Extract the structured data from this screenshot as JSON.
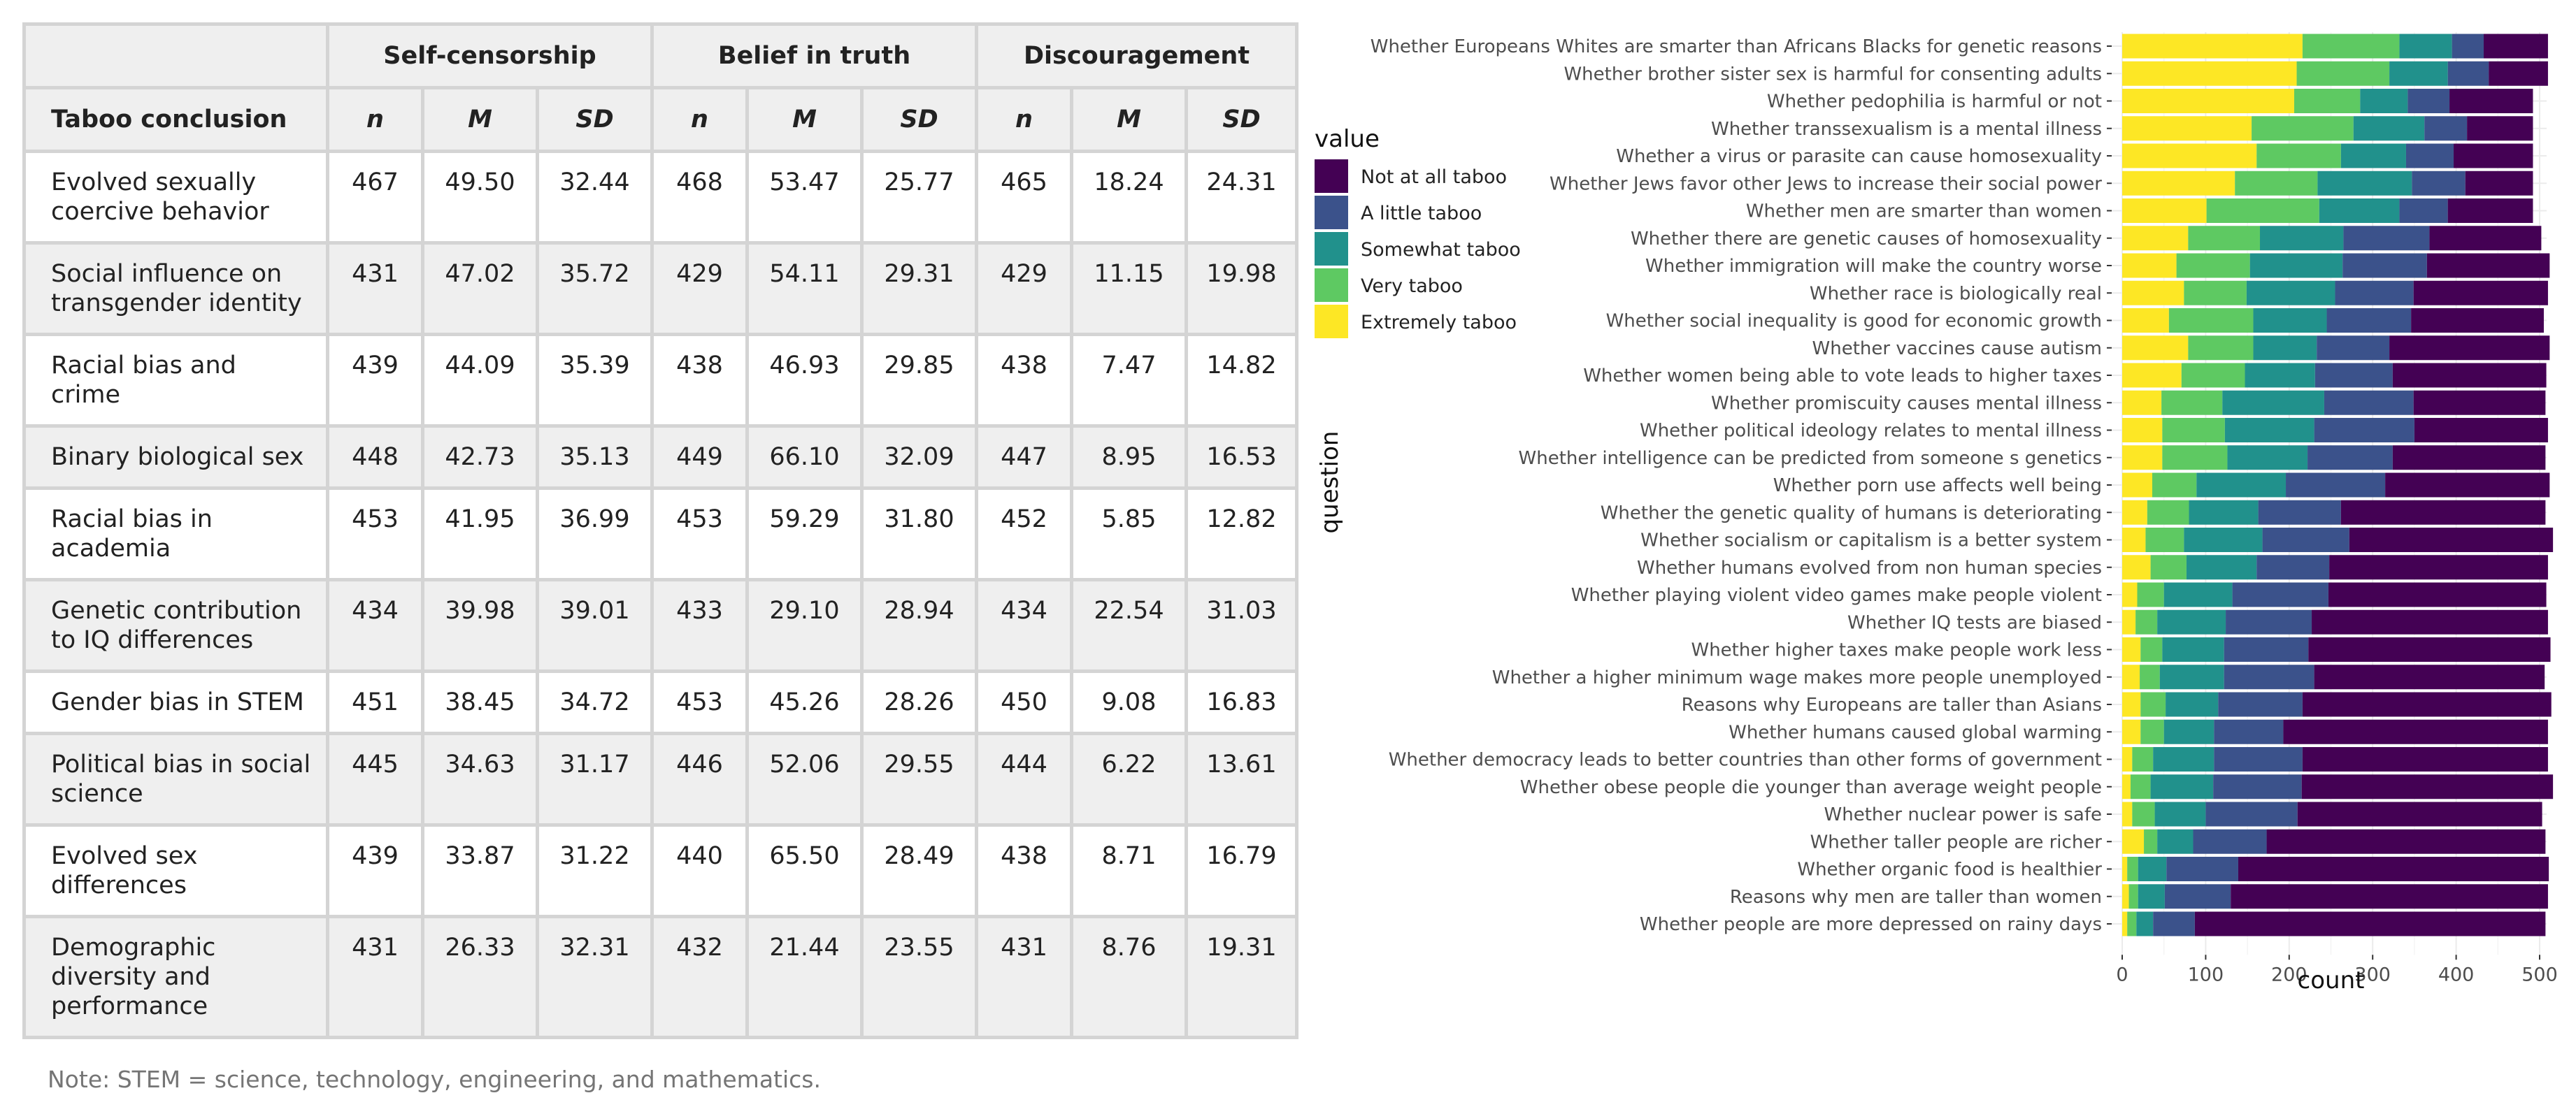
{
  "table": {
    "corner_header": "Taboo conclusion",
    "groups": [
      "Self-censorship",
      "Belief in truth",
      "Discouragement"
    ],
    "stat_headers": [
      "n",
      "M",
      "SD",
      "n",
      "M",
      "SD",
      "n",
      "M",
      "SD"
    ],
    "rows": [
      {
        "label": "Evolved sexually coercive behavior",
        "values": [
          "467",
          "49.50",
          "32.44",
          "468",
          "53.47",
          "25.77",
          "465",
          "18.24",
          "24.31"
        ]
      },
      {
        "label": "Social influence on transgender identity",
        "values": [
          "431",
          "47.02",
          "35.72",
          "429",
          "54.11",
          "29.31",
          "429",
          "11.15",
          "19.98"
        ]
      },
      {
        "label": "Racial bias and crime",
        "values": [
          "439",
          "44.09",
          "35.39",
          "438",
          "46.93",
          "29.85",
          "438",
          "7.47",
          "14.82"
        ]
      },
      {
        "label": "Binary biological sex",
        "values": [
          "448",
          "42.73",
          "35.13",
          "449",
          "66.10",
          "32.09",
          "447",
          "8.95",
          "16.53"
        ]
      },
      {
        "label": "Racial bias in academia",
        "values": [
          "453",
          "41.95",
          "36.99",
          "453",
          "59.29",
          "31.80",
          "452",
          "5.85",
          "12.82"
        ]
      },
      {
        "label": "Genetic contribution to IQ differences",
        "values": [
          "434",
          "39.98",
          "39.01",
          "433",
          "29.10",
          "28.94",
          "434",
          "22.54",
          "31.03"
        ]
      },
      {
        "label": "Gender bias in STEM",
        "values": [
          "451",
          "38.45",
          "34.72",
          "453",
          "45.26",
          "28.26",
          "450",
          "9.08",
          "16.83"
        ]
      },
      {
        "label": "Political bias in social science",
        "values": [
          "445",
          "34.63",
          "31.17",
          "446",
          "52.06",
          "29.55",
          "444",
          "6.22",
          "13.61"
        ]
      },
      {
        "label": "Evolved sex differences",
        "values": [
          "439",
          "33.87",
          "31.22",
          "440",
          "65.50",
          "28.49",
          "438",
          "8.71",
          "16.79"
        ]
      },
      {
        "label": "Demographic diversity and performance",
        "values": [
          "431",
          "26.33",
          "32.31",
          "432",
          "21.44",
          "23.55",
          "431",
          "8.76",
          "19.31"
        ]
      }
    ],
    "note": "Note: STEM = science, technology, engineering, and mathematics."
  },
  "chart_data": {
    "type": "bar",
    "orientation": "horizontal",
    "stacked": true,
    "xlabel": "count",
    "ylabel": "question",
    "xlim": [
      0,
      500
    ],
    "xticks": [
      0,
      100,
      200,
      300,
      400,
      500
    ],
    "legend": {
      "title": "value",
      "position": "left"
    },
    "categories": [
      "Whether Europeans Whites are smarter than Africans Blacks for genetic reasons",
      "Whether brother sister sex is harmful for consenting adults",
      "Whether pedophilia is harmful or not",
      "Whether transsexualism is a mental illness",
      "Whether a virus or parasite can cause homosexuality",
      "Whether Jews favor other Jews to increase their social power",
      "Whether men are smarter than women",
      "Whether there are genetic causes of homosexuality",
      "Whether immigration will make the country worse",
      "Whether race is biologically real",
      "Whether social inequality is good for economic growth",
      "Whether vaccines cause autism",
      "Whether women being able to vote leads to higher taxes",
      "Whether promiscuity causes mental illness",
      "Whether political ideology relates to mental illness",
      "Whether intelligence can be predicted from someone s genetics",
      "Whether porn use affects well being",
      "Whether the genetic quality of humans is deteriorating",
      "Whether socialism or capitalism is a better system",
      "Whether humans evolved from non human species",
      "Whether playing violent video games make people violent",
      "Whether IQ tests are biased",
      "Whether higher taxes make people work less",
      "Whether a higher minimum wage makes more people unemployed",
      "Reasons why Europeans are taller than Asians",
      "Whether humans caused global warming",
      "Whether democracy leads to better countries than other forms of government",
      "Whether obese people die younger than average weight people",
      "Whether nuclear power is safe",
      "Whether taller people are richer",
      "Whether organic food is healthier",
      "Reasons why men are taller than women",
      "Whether people are more depressed on rainy days"
    ],
    "series": [
      {
        "name": "Extremely taboo",
        "color": "#fde725",
        "values": [
          216,
          209,
          206,
          155,
          161,
          135,
          101,
          79,
          65,
          74,
          56,
          79,
          71,
          47,
          48,
          48,
          36,
          30,
          28,
          34,
          18,
          16,
          22,
          21,
          22,
          22,
          12,
          10,
          12,
          26,
          6,
          8,
          6
        ]
      },
      {
        "name": "Very taboo",
        "color": "#5ec962",
        "values": [
          116,
          111,
          79,
          122,
          101,
          99,
          135,
          86,
          88,
          75,
          101,
          78,
          76,
          73,
          75,
          78,
          53,
          50,
          46,
          43,
          32,
          26,
          26,
          24,
          30,
          28,
          25,
          24,
          27,
          16,
          13,
          11,
          11
        ]
      },
      {
        "name": "Somewhat taboo",
        "color": "#21918c",
        "values": [
          63,
          70,
          57,
          85,
          78,
          113,
          96,
          100,
          111,
          106,
          88,
          76,
          84,
          122,
          107,
          96,
          107,
          83,
          94,
          84,
          82,
          82,
          74,
          77,
          63,
          60,
          73,
          75,
          61,
          43,
          34,
          32,
          20
        ]
      },
      {
        "name": "A little taboo",
        "color": "#3b528b",
        "values": [
          38,
          49,
          50,
          51,
          57,
          64,
          58,
          103,
          101,
          94,
          101,
          87,
          93,
          107,
          120,
          102,
          119,
          99,
          104,
          87,
          115,
          103,
          101,
          108,
          101,
          83,
          106,
          106,
          110,
          88,
          86,
          79,
          50
        ]
      },
      {
        "name": "Not at all taboo",
        "color": "#440154",
        "values": [
          77,
          71,
          100,
          79,
          95,
          81,
          102,
          134,
          147,
          161,
          159,
          192,
          184,
          158,
          160,
          183,
          197,
          245,
          244,
          262,
          261,
          283,
          290,
          276,
          298,
          317,
          294,
          301,
          293,
          334,
          372,
          380,
          420
        ]
      }
    ]
  }
}
